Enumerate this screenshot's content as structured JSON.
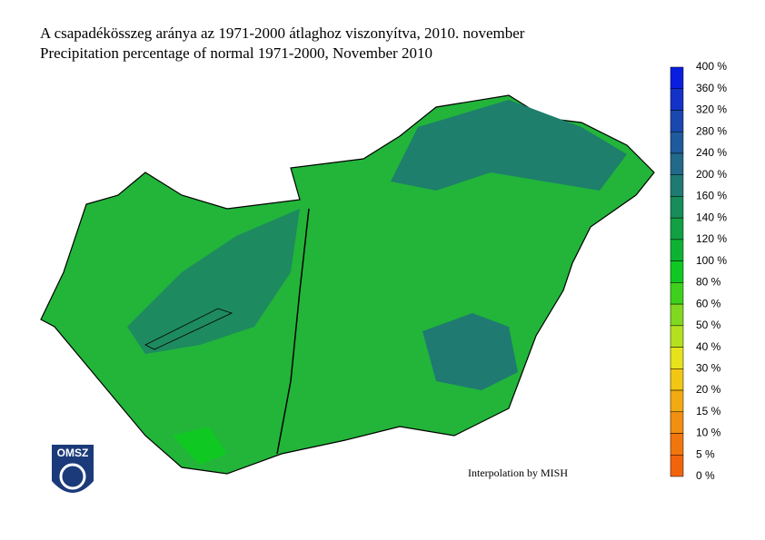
{
  "title": "A csapadékösszeg aránya az 1971-2000 átlaghoz viszonyítva, 2010. november",
  "subtitle": "Precipitation percentage of normal 1971-2000, November 2010",
  "credit": "Interpolation by MISH",
  "logo": "OMSZ",
  "colorbar": {
    "labels": [
      "400 %",
      "360 %",
      "320 %",
      "280 %",
      "240 %",
      "200 %",
      "160 %",
      "140 %",
      "120 %",
      "100 %",
      "80 %",
      "60 %",
      "50 %",
      "40 %",
      "30 %",
      "20 %",
      "15 %",
      "10 %",
      "5 %",
      "0 %"
    ],
    "colors": [
      "#0a1ee0",
      "#1432c8",
      "#1a48b0",
      "#1f5a9c",
      "#22698a",
      "#1f7a72",
      "#188c5a",
      "#12a044",
      "#0eb232",
      "#10c822",
      "#3fd01e",
      "#80d820",
      "#b4e020",
      "#e6e21c",
      "#f2c614",
      "#f2aa12",
      "#f28e10",
      "#f2760e",
      "#f2640c"
    ]
  }
}
